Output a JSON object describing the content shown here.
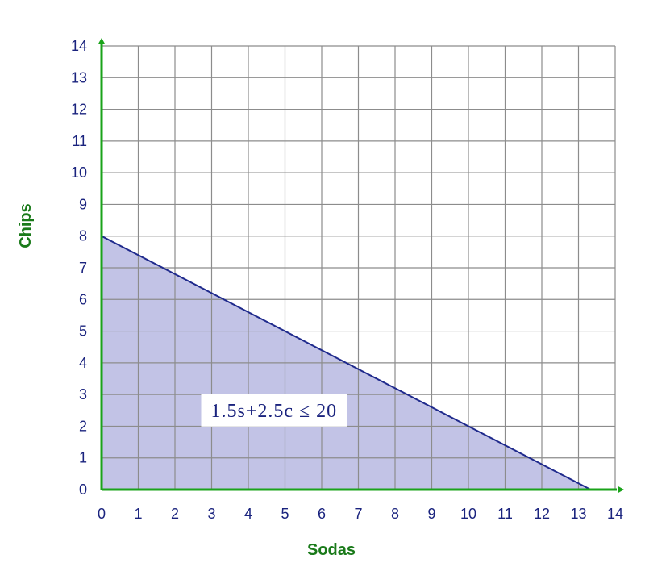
{
  "chart_data": {
    "type": "area",
    "xlabel": "Sodas",
    "ylabel": "Chips",
    "xlim": [
      0,
      14
    ],
    "ylim": [
      0,
      14
    ],
    "x_ticks": [
      "0",
      "1",
      "2",
      "3",
      "4",
      "5",
      "6",
      "7",
      "8",
      "9",
      "10",
      "11",
      "12",
      "13",
      "14"
    ],
    "y_ticks": [
      "0",
      "1",
      "2",
      "3",
      "4",
      "5",
      "6",
      "7",
      "8",
      "9",
      "10",
      "11",
      "12",
      "13",
      "14"
    ],
    "grid": true,
    "boundary_line": {
      "x": [
        0,
        13.33
      ],
      "y": [
        8,
        0
      ]
    },
    "shaded_region": {
      "x": [
        0,
        0,
        13.33
      ],
      "y": [
        0,
        8,
        0
      ]
    },
    "annotation": "1.5s+2.5c ≤ 20",
    "annotation_pos": {
      "x": 4.7,
      "y": 2.5
    },
    "colors": {
      "fill": "#c2c3e6",
      "line": "#1f2a8c",
      "grid": "#8c8c8c",
      "axis": "#1aa31a",
      "tick_text": "#1a237e",
      "axis_title": "#1a7a1a"
    }
  }
}
